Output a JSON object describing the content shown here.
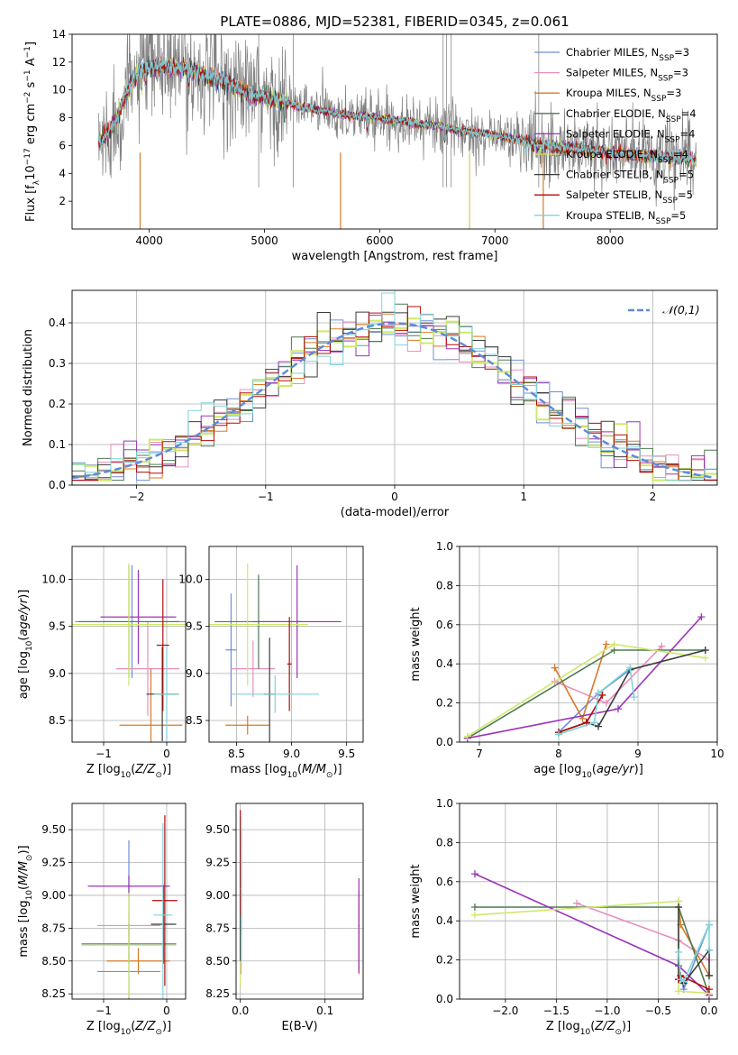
{
  "figure_title": "PLATE=0886, MJD=52381, FIBERID=0345, z=0.061",
  "colors": {
    "data": "#808080",
    "gaussian": "#5b8bd8",
    "series": [
      "#6f8fd6",
      "#e88fc0",
      "#d77a2a",
      "#4f7a52",
      "#9b33b8",
      "#cfe86a",
      "#3a3a3a",
      "#b00d0d",
      "#7fd3da"
    ]
  },
  "chart_data": [
    {
      "id": "spectrum",
      "type": "line",
      "title": "PLATE=0886, MJD=52381, FIBERID=0345, z=0.061",
      "xlabel": "wavelength [Angstrom, rest frame]",
      "ylabel": "Flux [f_λ 10^-17 erg cm^-2 s^-1 A^-1]",
      "xlim": [
        3330,
        8930
      ],
      "ylim": [
        0,
        14
      ],
      "xticks": [
        "4000",
        "5000",
        "6000",
        "7000",
        "8000"
      ],
      "yticks": [
        "2",
        "4",
        "6",
        "8",
        "10",
        "12",
        "14"
      ],
      "grid": false,
      "legend_position": "top-right",
      "legend": [
        "Chabrier MILES, N_SSP=3",
        "Salpeter MILES, N_SSP=3",
        "Kroupa MILES, N_SSP=3",
        "Chabrier ELODIE, N_SSP=4",
        "Salpeter ELODIE, N_SSP=4",
        "Kroupa ELODIE, N_SSP=4",
        "Chabrier STELIB, N_SSP=5",
        "Salpeter STELIB, N_SSP=5",
        "Kroupa STELIB, N_SSP=5"
      ],
      "continuum": {
        "x": [
          3600,
          3700,
          3800,
          3900,
          4000,
          4100,
          4300,
          4500,
          4700,
          4900,
          5100,
          5300,
          5500,
          5700,
          5900,
          6100,
          6300,
          6500,
          6700,
          6900,
          7100,
          7300,
          7500,
          7700,
          7900,
          8200,
          8400,
          8600,
          8700,
          8800
        ],
        "y": [
          6.4,
          7.6,
          9.8,
          11.2,
          11.6,
          11.8,
          11.5,
          11.0,
          10.5,
          9.6,
          9.3,
          8.8,
          8.5,
          8.2,
          8.1,
          7.9,
          7.6,
          7.4,
          7.1,
          6.9,
          6.6,
          6.2,
          5.9,
          5.8,
          5.6,
          5.3,
          5.2,
          5.1,
          5.0,
          4.9
        ]
      }
    },
    {
      "id": "residuals",
      "type": "line",
      "xlabel": "(data-model)/error",
      "ylabel": "Normed distribution",
      "xlim": [
        -2.5,
        2.5
      ],
      "ylim": [
        0,
        0.48
      ],
      "xticks": [
        "−2",
        "−1",
        "0",
        "1",
        "2"
      ],
      "yticks": [
        "0.0",
        "0.1",
        "0.2",
        "0.3",
        "0.4"
      ],
      "grid": true,
      "legend_position": "top-right",
      "legend": [
        "𝒩(0,1)"
      ],
      "bin_width": 0.1
    },
    {
      "id": "age-vs-Z",
      "type": "scatter",
      "xlabel": "Z [log10(Z/Z⊙)]",
      "ylabel": "age [log10(age/yr)]",
      "xlim": [
        -1.5,
        0.3
      ],
      "ylim": [
        8.27,
        10.35
      ],
      "xticks": [
        "−1",
        "0"
      ],
      "yticks": [
        "8.5",
        "9.0",
        "9.5",
        "10.0"
      ],
      "grid": true,
      "points": [
        {
          "x": -0.55,
          "y": 9.55,
          "xerr": 0.9,
          "yerr": 0.6,
          "s": 0
        },
        {
          "x": -0.3,
          "y": 9.05,
          "xerr": 0.5,
          "yerr": 0.5,
          "s": 1
        },
        {
          "x": -0.25,
          "y": 8.45,
          "xerr": 0.5,
          "yerr": 0.6,
          "s": 2
        },
        {
          "x": -0.6,
          "y": 9.55,
          "xerr": 0.8,
          "yerr": 0.6,
          "s": 3
        },
        {
          "x": -0.45,
          "y": 9.6,
          "xerr": 0.6,
          "yerr": 0.5,
          "s": 4
        },
        {
          "x": -0.6,
          "y": 9.52,
          "xerr": 0.9,
          "yerr": 0.65,
          "s": 5
        },
        {
          "x": -0.07,
          "y": 8.78,
          "xerr": 0.25,
          "yerr": 0.5,
          "s": 6
        },
        {
          "x": -0.06,
          "y": 9.3,
          "xerr": 0.1,
          "yerr": 0.7,
          "s": 7
        },
        {
          "x": 0.0,
          "y": 8.78,
          "xerr": 0.2,
          "yerr": 0.5,
          "s": 8
        }
      ]
    },
    {
      "id": "age-vs-mass",
      "type": "scatter",
      "xlabel": "mass [log10(M/M⊙)]",
      "ylabel": "",
      "xlim": [
        8.25,
        9.65
      ],
      "ylim": [
        8.27,
        10.35
      ],
      "xticks": [
        "8.5",
        "9.0",
        "9.5"
      ],
      "yticks": [
        "8.5",
        "9.0",
        "9.5",
        "10.0"
      ],
      "grid": true,
      "points": [
        {
          "x": 8.45,
          "y": 9.25,
          "xerr": 0.05,
          "yerr": 0.6,
          "s": 0
        },
        {
          "x": 8.65,
          "y": 9.05,
          "xerr": 0.2,
          "yerr": 0.3,
          "s": 1
        },
        {
          "x": 8.6,
          "y": 8.45,
          "xerr": 0.2,
          "yerr": 0.1,
          "s": 2
        },
        {
          "x": 8.7,
          "y": 9.55,
          "xerr": 0.4,
          "yerr": 0.5,
          "s": 3
        },
        {
          "x": 9.05,
          "y": 9.55,
          "xerr": 0.4,
          "yerr": 0.6,
          "s": 4
        },
        {
          "x": 8.6,
          "y": 9.52,
          "xerr": 0.55,
          "yerr": 0.65,
          "s": 5
        },
        {
          "x": 8.8,
          "y": 8.78,
          "xerr": 0.05,
          "yerr": 0.6,
          "s": 6
        },
        {
          "x": 8.98,
          "y": 9.1,
          "xerr": 0.02,
          "yerr": 0.5,
          "s": 7
        },
        {
          "x": 8.85,
          "y": 8.78,
          "xerr": 0.4,
          "yerr": 0.2,
          "s": 8
        }
      ]
    },
    {
      "id": "weight-vs-age",
      "type": "line",
      "xlabel": "age [log10(age/yr)]",
      "ylabel": "mass weight",
      "xlim": [
        6.75,
        10.0
      ],
      "ylim": [
        0,
        1
      ],
      "xticks": [
        "7",
        "8",
        "9",
        "10"
      ],
      "yticks": [
        "0.0",
        "0.2",
        "0.4",
        "0.6",
        "0.8",
        "1.0"
      ],
      "grid": true,
      "series": [
        {
          "s": 0,
          "x": [
            8.0,
            8.5,
            8.9
          ],
          "y": [
            0.05,
            0.25,
            0.37
          ]
        },
        {
          "s": 1,
          "x": [
            7.95,
            8.6,
            9.3
          ],
          "y": [
            0.31,
            0.2,
            0.49
          ]
        },
        {
          "s": 2,
          "x": [
            7.95,
            8.3,
            8.6
          ],
          "y": [
            0.38,
            0.12,
            0.5
          ]
        },
        {
          "s": 3,
          "x": [
            6.85,
            8.7,
            9.85
          ],
          "y": [
            0.02,
            0.47,
            0.47
          ]
        },
        {
          "s": 4,
          "x": [
            6.85,
            8.75,
            9.8
          ],
          "y": [
            0.02,
            0.17,
            0.64
          ]
        },
        {
          "s": 5,
          "x": [
            6.85,
            8.7,
            9.85
          ],
          "y": [
            0.03,
            0.5,
            0.43
          ]
        },
        {
          "s": 6,
          "x": [
            8.0,
            8.35,
            8.5,
            8.9,
            9.85
          ],
          "y": [
            0.05,
            0.1,
            0.08,
            0.37,
            0.47
          ]
        },
        {
          "s": 7,
          "x": [
            8.0,
            8.35,
            8.55
          ],
          "y": [
            0.05,
            0.1,
            0.24
          ]
        },
        {
          "s": 8,
          "x": [
            8.0,
            8.45,
            8.5,
            8.9,
            8.95
          ],
          "y": [
            0.04,
            0.1,
            0.25,
            0.38,
            0.23
          ]
        }
      ]
    },
    {
      "id": "mass-vs-Z",
      "type": "scatter",
      "xlabel": "Z [log10(Z/Z⊙)]",
      "ylabel": "mass [log10(M/M⊙)]",
      "xlim": [
        -1.5,
        0.3
      ],
      "ylim": [
        8.21,
        9.7
      ],
      "xticks": [
        "−1",
        "0"
      ],
      "yticks": [
        "8.25",
        "8.50",
        "8.75",
        "9.00",
        "9.25",
        "9.50"
      ],
      "grid": true,
      "points": [
        {
          "x": -0.6,
          "y": 8.42,
          "xerr": 0.5,
          "yerr": 1.0,
          "s": 0
        },
        {
          "x": -0.6,
          "y": 8.77,
          "xerr": 0.5,
          "yerr": 0.1,
          "s": 1
        },
        {
          "x": -0.45,
          "y": 8.5,
          "xerr": 0.5,
          "yerr": 0.1,
          "s": 2
        },
        {
          "x": -0.6,
          "y": 8.63,
          "xerr": 0.75,
          "yerr": 0.15,
          "s": 3
        },
        {
          "x": -0.6,
          "y": 9.07,
          "xerr": 0.65,
          "yerr": 0.08,
          "s": 4
        },
        {
          "x": -0.6,
          "y": 8.62,
          "xerr": 0.75,
          "yerr": 0.4,
          "s": 5
        },
        {
          "x": -0.05,
          "y": 8.78,
          "xerr": 0.2,
          "yerr": 0.3,
          "s": 6
        },
        {
          "x": -0.03,
          "y": 8.96,
          "xerr": 0.2,
          "yerr": 0.65,
          "s": 7
        },
        {
          "x": -0.06,
          "y": 8.85,
          "xerr": 0.15,
          "yerr": 0.7,
          "s": 8
        }
      ]
    },
    {
      "id": "mass-vs-EBV",
      "type": "scatter",
      "xlabel": "E(B-V)",
      "ylabel": "",
      "xlim": [
        -0.005,
        0.145
      ],
      "ylim": [
        8.21,
        9.7
      ],
      "xticks": [
        "0.0",
        "0.1"
      ],
      "yticks": [
        "8.25",
        "8.50",
        "8.75",
        "9.00",
        "9.25",
        "9.50"
      ],
      "grid": true,
      "points": [
        {
          "x": 0.0,
          "y": 9.0,
          "xerr": 0,
          "yerr": 0.6,
          "s": 0
        },
        {
          "x": 0.001,
          "y": 9.0,
          "xerr": 0,
          "yerr": 0.6,
          "s": 1
        },
        {
          "x": 0.14,
          "y": 8.72,
          "xerr": 0,
          "yerr": 0.32,
          "s": 2
        },
        {
          "x": 0.001,
          "y": 9.1,
          "xerr": 0,
          "yerr": 0.4,
          "s": 3
        },
        {
          "x": 0.14,
          "y": 8.77,
          "xerr": 0,
          "yerr": 0.36,
          "s": 4
        },
        {
          "x": 0.0,
          "y": 8.95,
          "xerr": 0,
          "yerr": 0.65,
          "s": 5
        },
        {
          "x": 0.0,
          "y": 9.0,
          "xerr": 0,
          "yerr": 0.5,
          "s": 6
        },
        {
          "x": 0.0,
          "y": 9.25,
          "xerr": 0,
          "yerr": 0.4,
          "s": 7
        },
        {
          "x": 0.001,
          "y": 9.05,
          "xerr": 0,
          "yerr": 0.55,
          "s": 8
        }
      ]
    },
    {
      "id": "weight-vs-Z",
      "type": "line",
      "xlabel": "Z [log10(Z/Z⊙)]",
      "ylabel": "mass weight",
      "xlim": [
        -2.45,
        0.08
      ],
      "ylim": [
        0,
        1
      ],
      "xticks": [
        "−2.0",
        "−1.5",
        "−1.0",
        "−0.5",
        "0.0"
      ],
      "yticks": [
        "0.0",
        "0.2",
        "0.4",
        "0.6",
        "0.8",
        "1.0"
      ],
      "grid": true,
      "series": [
        {
          "s": 0,
          "x": [
            -0.3,
            -0.25,
            0.0
          ],
          "y": [
            0.17,
            0.05,
            0.38
          ]
        },
        {
          "s": 1,
          "x": [
            -1.3,
            -0.3,
            0.0
          ],
          "y": [
            0.49,
            0.3,
            0.2
          ]
        },
        {
          "s": 2,
          "x": [
            -0.3,
            -0.28,
            0.0
          ],
          "y": [
            0.5,
            0.38,
            0.12
          ]
        },
        {
          "s": 3,
          "x": [
            -2.3,
            -0.3,
            0.0
          ],
          "y": [
            0.47,
            0.47,
            0.02
          ]
        },
        {
          "s": 4,
          "x": [
            -2.3,
            -0.3,
            0.0
          ],
          "y": [
            0.64,
            0.17,
            0.02
          ]
        },
        {
          "s": 5,
          "x": [
            -2.3,
            -0.3,
            -0.3,
            0.0
          ],
          "y": [
            0.43,
            0.5,
            0.04,
            0.03
          ]
        },
        {
          "s": 6,
          "x": [
            -0.3,
            -0.3,
            -0.25,
            0.0,
            0.0
          ],
          "y": [
            0.47,
            0.1,
            0.08,
            0.25,
            0.12
          ]
        },
        {
          "s": 7,
          "x": [
            -0.3,
            -0.28,
            0.0
          ],
          "y": [
            0.1,
            0.12,
            0.05
          ]
        },
        {
          "s": 8,
          "x": [
            -0.3,
            -0.28,
            -0.25,
            0.0,
            0.0
          ],
          "y": [
            0.24,
            0.1,
            0.09,
            0.38,
            0.25
          ]
        }
      ]
    }
  ]
}
